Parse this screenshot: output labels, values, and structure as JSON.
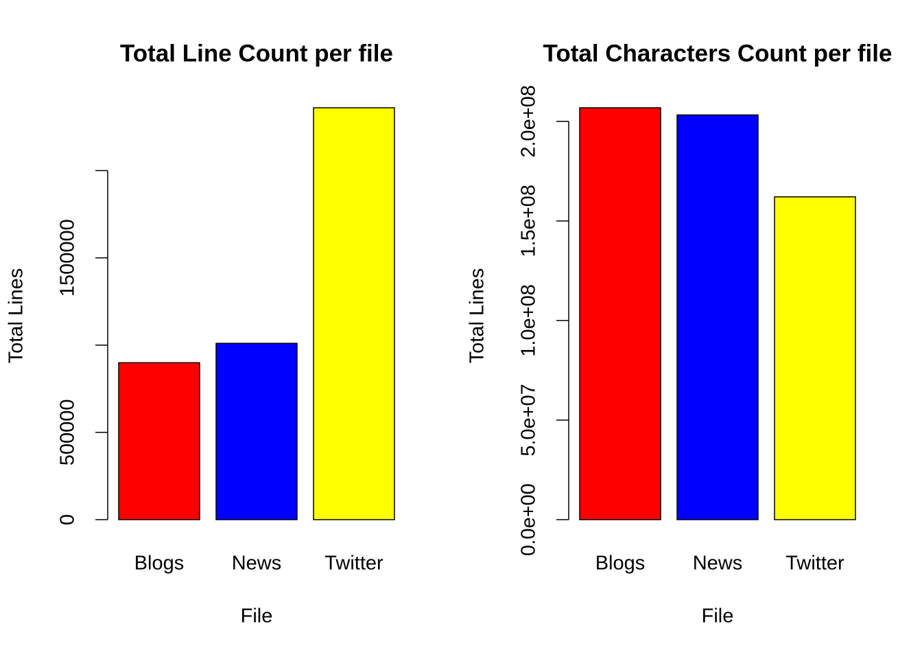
{
  "chart_data": [
    {
      "type": "bar",
      "title": "Total Line Count per file",
      "xlabel": "File",
      "ylabel": "Total Lines",
      "categories": [
        "Blogs",
        "News",
        "Twitter"
      ],
      "values": [
        899288,
        1010242,
        2360148
      ],
      "colors": [
        "#ff0000",
        "#0000ff",
        "#ffff00"
      ],
      "ylim": [
        0,
        2360148
      ],
      "yticks": [
        0,
        500000,
        {
          "value": 1000000,
          "label": null
        },
        1500000,
        {
          "value": 2000000,
          "label": null
        }
      ]
    },
    {
      "type": "bar",
      "title": "Total Characters Count per file",
      "xlabel": "File",
      "ylabel": "Total Lines",
      "categories": [
        "Blogs",
        "News",
        "Twitter"
      ],
      "values": [
        206824505,
        203223159,
        162096031
      ],
      "colors": [
        "#ff0000",
        "#0000ff",
        "#ffff00"
      ],
      "ylim": [
        0,
        206824505
      ],
      "yticks": [
        {
          "value": 0,
          "label": "0.0e+00"
        },
        {
          "value": 50000000,
          "label": "5.0e+07"
        },
        {
          "value": 100000000,
          "label": "1.0e+08"
        },
        {
          "value": 150000000,
          "label": "1.5e+08"
        },
        {
          "value": 200000000,
          "label": "2.0e+08"
        }
      ]
    }
  ]
}
